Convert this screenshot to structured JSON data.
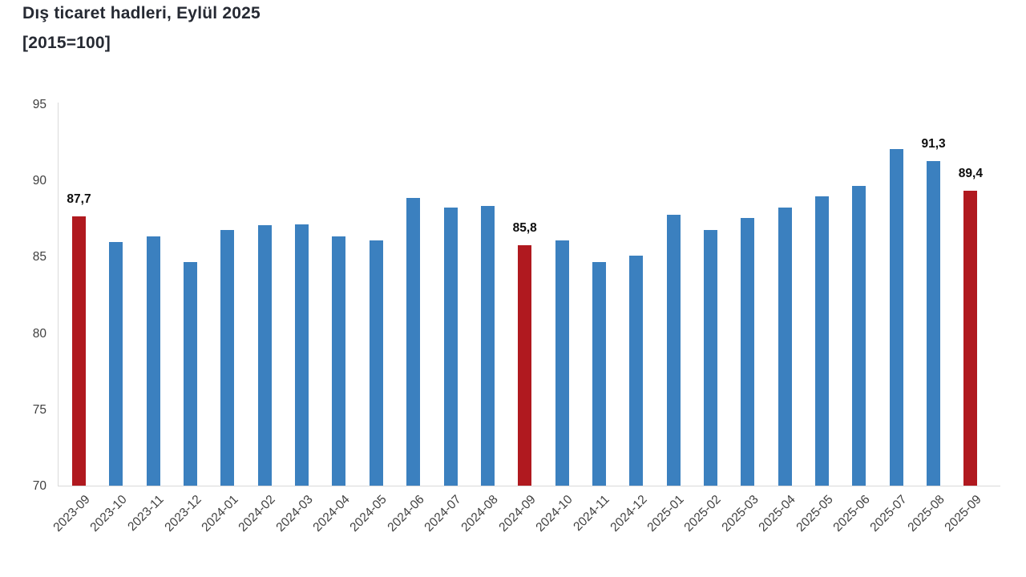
{
  "chart_data": {
    "type": "bar",
    "title": "Dış ticaret hadleri, Eylül 2025",
    "subtitle": "[2015=100]",
    "xlabel": "",
    "ylabel": "",
    "categories": [
      "2023-09",
      "2023-10",
      "2023-11",
      "2023-12",
      "2024-01",
      "2024-02",
      "2024-03",
      "2024-04",
      "2024-05",
      "2024-06",
      "2024-07",
      "2024-08",
      "2024-09",
      "2024-10",
      "2024-11",
      "2024-12",
      "2025-01",
      "2025-02",
      "2025-03",
      "2025-04",
      "2025-05",
      "2025-06",
      "2025-07",
      "2025-08",
      "2025-09"
    ],
    "values": [
      87.7,
      86.0,
      86.4,
      84.7,
      86.8,
      87.1,
      87.2,
      86.4,
      86.1,
      88.9,
      88.3,
      88.4,
      85.8,
      86.1,
      84.7,
      85.1,
      87.8,
      86.8,
      87.6,
      88.3,
      89.0,
      89.7,
      92.1,
      91.3,
      89.4
    ],
    "point_labels": {
      "0": "87,7",
      "12": "85,8",
      "23": "91,3",
      "24": "89,4"
    },
    "highlight_indices": [
      0,
      12,
      24
    ],
    "ylim": [
      70,
      95
    ],
    "yticks": [
      70,
      75,
      80,
      85,
      90,
      95
    ],
    "grid": false,
    "legend": false,
    "colors": {
      "bar": "#3b80bf",
      "highlight": "#b0191f",
      "axis_line": "#d9d9d9",
      "tick_text": "#3f3f3f",
      "value_label_text": "#0d0d0d",
      "title_text": "#262a33"
    }
  }
}
